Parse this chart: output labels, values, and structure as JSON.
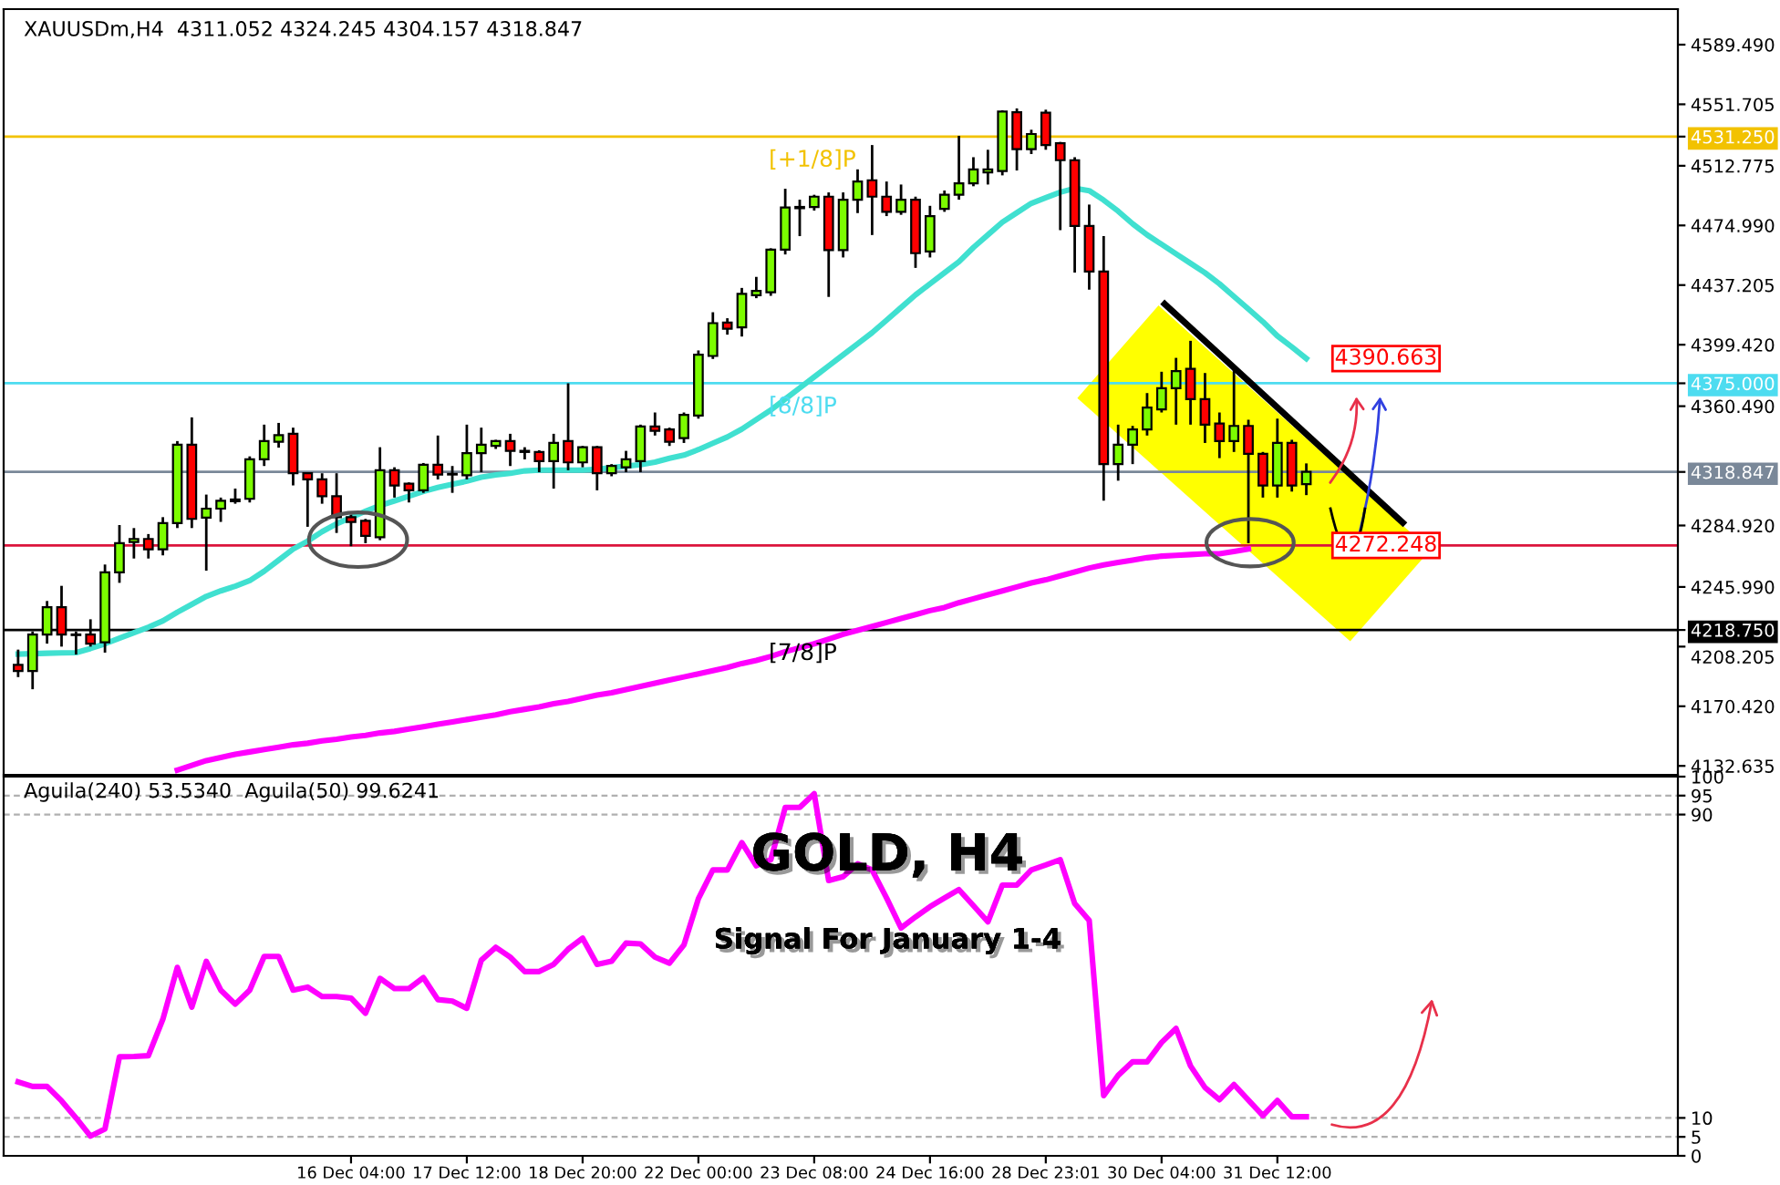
{
  "chart_data": [
    {
      "type": "candlestick",
      "title": "XAUUSDm,H4  4311.052 4324.245 4304.157 4318.847",
      "categories": [
        null,
        null,
        null,
        null,
        null,
        null,
        null,
        null,
        null,
        null,
        null,
        null,
        null,
        null,
        null,
        null,
        null,
        null,
        null,
        null,
        null,
        null,
        null,
        null,
        null,
        null,
        null,
        null,
        null,
        null,
        null,
        null,
        null,
        null,
        null,
        null,
        null,
        null,
        null,
        null,
        null,
        null,
        null,
        null,
        null,
        null,
        null,
        null,
        null,
        null,
        null,
        null,
        null,
        null,
        null,
        null,
        null,
        null,
        null,
        null,
        null,
        null,
        null,
        null,
        null,
        null,
        null,
        null,
        null,
        null,
        null,
        null,
        null,
        null,
        null,
        null,
        null,
        null,
        null,
        null,
        null,
        null,
        null,
        null,
        null,
        null,
        null,
        null,
        null,
        null
      ],
      "ohlc": [
        [
          4196.7,
          4206.3,
          4188.9,
          4192.8
        ],
        [
          4192.8,
          4217.8,
          4181.2,
          4215.9
        ],
        [
          4215.9,
          4237.1,
          4210.1,
          4233.2
        ],
        [
          4233.2,
          4246.7,
          4208.2,
          4215.9
        ],
        [
          4215.9,
          4217.8,
          4203.2,
          4215.5
        ],
        [
          4215.9,
          4225.5,
          4208.2,
          4210.1
        ],
        [
          4210.9,
          4260.2,
          4204.4,
          4255.2
        ],
        [
          4255.2,
          4285.2,
          4248.6,
          4273.7
        ],
        [
          4274.4,
          4283.3,
          4264.0,
          4276.4
        ],
        [
          4276.4,
          4279.5,
          4264.0,
          4269.8
        ],
        [
          4269.8,
          4290.2,
          4266.0,
          4286.4
        ],
        [
          4286.4,
          4338.4,
          4283.3,
          4336.1
        ],
        [
          4336.1,
          4353.4,
          4283.3,
          4289.1
        ],
        [
          4289.9,
          4304.5,
          4256.3,
          4295.6
        ],
        [
          4295.6,
          4302.6,
          4287.2,
          4300.6
        ],
        [
          4300.3,
          4308.3,
          4298.7,
          4301.4
        ],
        [
          4301.8,
          4328.7,
          4299.5,
          4326.8
        ],
        [
          4326.8,
          4348.8,
          4322.6,
          4338.4
        ],
        [
          4338.0,
          4349.9,
          4334.2,
          4342.2
        ],
        [
          4343.0,
          4346.9,
          4310.3,
          4318.0
        ],
        [
          4318.0,
          4318.7,
          4284.1,
          4314.1
        ],
        [
          4314.1,
          4318.0,
          4298.7,
          4303.4
        ],
        [
          4303.4,
          4318.0,
          4280.2,
          4290.2
        ],
        [
          4290.2,
          4291.8,
          4271.8,
          4287.2
        ],
        [
          4287.9,
          4289.1,
          4273.7,
          4278.3
        ],
        [
          4277.5,
          4334.5,
          4275.6,
          4319.9
        ],
        [
          4319.9,
          4321.8,
          4302.6,
          4310.3
        ],
        [
          4311.4,
          4312.2,
          4299.5,
          4307.2
        ],
        [
          4307.2,
          4324.5,
          4305.6,
          4323.4
        ],
        [
          4323.4,
          4341.9,
          4314.1,
          4317.2
        ],
        [
          4317.6,
          4322.6,
          4305.6,
          4317.2
        ],
        [
          4316.8,
          4348.8,
          4314.1,
          4330.7
        ],
        [
          4330.7,
          4346.9,
          4318.7,
          4336.1
        ],
        [
          4335.3,
          4339.2,
          4333.4,
          4338.4
        ],
        [
          4338.4,
          4343.0,
          4322.6,
          4332.2
        ],
        [
          4332.2,
          4334.5,
          4326.8,
          4331.5
        ],
        [
          4331.5,
          4332.6,
          4318.7,
          4325.7
        ],
        [
          4325.7,
          4343.0,
          4308.3,
          4337.2
        ],
        [
          4338.4,
          4375.0,
          4319.9,
          4324.9
        ],
        [
          4324.9,
          4335.3,
          4321.8,
          4334.5
        ],
        [
          4334.5,
          4335.3,
          4307.2,
          4318.0
        ],
        [
          4318.0,
          4323.8,
          4316.1,
          4322.6
        ],
        [
          4321.8,
          4332.2,
          4318.7,
          4326.8
        ],
        [
          4325.7,
          4348.8,
          4318.7,
          4347.6
        ],
        [
          4347.6,
          4356.5,
          4341.9,
          4344.9
        ],
        [
          4345.7,
          4346.9,
          4335.3,
          4338.0
        ],
        [
          4340.3,
          4356.5,
          4337.2,
          4355.0
        ],
        [
          4354.6,
          4395.8,
          4352.6,
          4393.1
        ],
        [
          4392.3,
          4420.0,
          4390.4,
          4413.1
        ],
        [
          4413.5,
          4416.2,
          4405.8,
          4409.6
        ],
        [
          4410.4,
          4435.4,
          4404.6,
          4431.6
        ],
        [
          4430.8,
          4442.4,
          4428.9,
          4433.5
        ],
        [
          4432.7,
          4460.5,
          4430.4,
          4459.7
        ],
        [
          4459.7,
          4498.2,
          4456.6,
          4486.3
        ],
        [
          4486.7,
          4491.3,
          4468.2,
          4485.9
        ],
        [
          4486.7,
          4494.4,
          4484.4,
          4493.2
        ],
        [
          4493.2,
          4495.9,
          4429.7,
          4459.3
        ],
        [
          4459.3,
          4495.9,
          4454.7,
          4491.3
        ],
        [
          4491.3,
          4510.5,
          4482.8,
          4502.8
        ],
        [
          4503.6,
          4525.9,
          4468.9,
          4493.2
        ],
        [
          4493.2,
          4502.8,
          4480.9,
          4483.6
        ],
        [
          4483.6,
          4500.9,
          4481.7,
          4491.3
        ],
        [
          4491.3,
          4493.2,
          4448.1,
          4457.4
        ],
        [
          4458.5,
          4487.4,
          4454.7,
          4480.9
        ],
        [
          4485.5,
          4497.1,
          4483.6,
          4494.4
        ],
        [
          4494.4,
          4531.7,
          4491.3,
          4501.7
        ],
        [
          4501.7,
          4518.2,
          4499.8,
          4510.5
        ],
        [
          4508.6,
          4522.9,
          4500.9,
          4510.5
        ],
        [
          4509.4,
          4547.9,
          4506.7,
          4547.1
        ],
        [
          4546.7,
          4549.1,
          4509.8,
          4523.3
        ],
        [
          4523.3,
          4535.6,
          4520.2,
          4532.9
        ],
        [
          4546.4,
          4548.3,
          4522.9,
          4525.9
        ],
        [
          4527.1,
          4527.9,
          4472.0,
          4516.3
        ],
        [
          4516.3,
          4518.2,
          4445.1,
          4474.7
        ],
        [
          4474.7,
          4488.2,
          4434.3,
          4445.8
        ],
        [
          4445.8,
          4468.2,
          4300.6,
          4323.8
        ],
        [
          4323.8,
          4348.8,
          4313.3,
          4336.1
        ],
        [
          4336.1,
          4348.0,
          4323.8,
          4345.7
        ],
        [
          4345.7,
          4368.8,
          4341.9,
          4359.6
        ],
        [
          4358.4,
          4382.3,
          4356.5,
          4371.9
        ],
        [
          4371.9,
          4391.1,
          4348.8,
          4382.7
        ],
        [
          4384.2,
          4401.9,
          4348.8,
          4364.9
        ],
        [
          4364.9,
          4381.5,
          4337.2,
          4348.8
        ],
        [
          4349.5,
          4356.5,
          4327.6,
          4338.4
        ],
        [
          4338.4,
          4385.4,
          4331.5,
          4348.0
        ],
        [
          4348.0,
          4351.9,
          4273.7,
          4330.3
        ],
        [
          4330.3,
          4331.5,
          4302.6,
          4310.3
        ],
        [
          4310.3,
          4352.6,
          4302.6,
          4337.2
        ],
        [
          4337.2,
          4339.2,
          4306.4,
          4310.3
        ],
        [
          4311.052,
          4324.245,
          4304.157,
          4318.847
        ]
      ],
      "colors": [
        "#ff0000",
        "#7cfc00",
        "#7cfc00",
        "#ff0000",
        "#ff0000",
        "#ff0000",
        "#7cfc00",
        "#7cfc00",
        "#7cfc00",
        "#ff0000",
        "#7cfc00",
        "#7cfc00",
        "#ff0000",
        "#7cfc00",
        "#7cfc00",
        "#7cfc00",
        "#7cfc00",
        "#7cfc00",
        "#7cfc00",
        "#ff0000",
        "#ff0000",
        "#ff0000",
        "#ff0000",
        "#ff0000",
        "#ff0000",
        "#7cfc00",
        "#ff0000",
        "#ff0000",
        "#7cfc00",
        "#ff0000",
        "#ff0000",
        "#7cfc00",
        "#7cfc00",
        "#7cfc00",
        "#ff0000",
        "#ff0000",
        "#ff0000",
        "#7cfc00",
        "#ff0000",
        "#7cfc00",
        "#ff0000",
        "#7cfc00",
        "#7cfc00",
        "#7cfc00",
        "#ff0000",
        "#ff0000",
        "#7cfc00",
        "#7cfc00",
        "#7cfc00",
        "#ff0000",
        "#7cfc00",
        "#7cfc00",
        "#7cfc00",
        "#7cfc00",
        "#ff0000",
        "#7cfc00",
        "#ff0000",
        "#7cfc00",
        "#7cfc00",
        "#ff0000",
        "#ff0000",
        "#7cfc00",
        "#ff0000",
        "#7cfc00",
        "#7cfc00",
        "#7cfc00",
        "#7cfc00",
        "#7cfc00",
        "#7cfc00",
        "#ff0000",
        "#7cfc00",
        "#ff0000",
        "#ff0000",
        "#ff0000",
        "#ff0000",
        "#ff0000",
        "#7cfc00",
        "#7cfc00",
        "#7cfc00",
        "#7cfc00",
        "#7cfc00",
        "#ff0000",
        "#ff0000",
        "#ff0000",
        "#7cfc00",
        "#ff0000",
        "#ff0000",
        "#7cfc00",
        "#ff0000",
        "#7cfc00"
      ],
      "series": [
        {
          "type": "line",
          "color": "#40e0d0",
          "values": [
            4203.5,
            4203.7,
            4204,
            4204.2,
            4204.4,
            4207,
            4210,
            4213.5,
            4217,
            4220.5,
            4224.5,
            4230,
            4235,
            4240,
            4243.5,
            4246.5,
            4250,
            4256,
            4263,
            4270,
            4275,
            4281,
            4286,
            4290,
            4294,
            4297.5,
            4300.5,
            4303.5,
            4306.5,
            4309,
            4311,
            4313,
            4315.5,
            4317,
            4318,
            4319.5,
            4320,
            4320,
            4320,
            4320,
            4320.5,
            4321.5,
            4322.5,
            4323.5,
            4325,
            4327.5,
            4329.5,
            4333,
            4337,
            4341,
            4346,
            4352,
            4358,
            4365,
            4372,
            4379,
            4386,
            4393,
            4400,
            4407,
            4415,
            4423,
            4431,
            4438,
            4445,
            4452,
            4461,
            4469,
            4477,
            4483,
            4489,
            4492.5,
            4496,
            4498.5,
            4497,
            4491,
            4484,
            4476,
            4469,
            4463,
            4457,
            4451,
            4445,
            4438,
            4430,
            4422,
            4414,
            4405,
            4398,
            4390.663
          ]
        },
        {
          "type": "line",
          "color": "#ff00ff",
          "values": [
            null,
            null,
            null,
            null,
            null,
            null,
            null,
            null,
            null,
            null,
            null,
            4130,
            4133,
            4136,
            4138,
            4140,
            4141.5,
            4143,
            4144.5,
            4146,
            4147,
            4148.5,
            4149.5,
            4151,
            4152,
            4153.5,
            4154.5,
            4156,
            4157.5,
            4159,
            4160.5,
            4162,
            4163.5,
            4165,
            4167,
            4168.5,
            4170,
            4172,
            4173.5,
            4175.5,
            4177.5,
            4179,
            4181,
            4183,
            4185,
            4187,
            4189,
            4191,
            4193,
            4195,
            4197.5,
            4199.5,
            4202,
            4205,
            4207.5,
            4210,
            4213,
            4216,
            4218.5,
            4221,
            4223.5,
            4226,
            4228.5,
            4231,
            4233,
            4236,
            4238.5,
            4241,
            4243.5,
            4246,
            4248.5,
            4250.5,
            4253,
            4255.5,
            4258,
            4260,
            4261.5,
            4263,
            4264.5,
            4265.5,
            4266,
            4266.5,
            4267,
            4267,
            4268.5,
            4270,
            null,
            null,
            null,
            null
          ]
        }
      ],
      "ref_lines": [
        {
          "axis": "y",
          "value": 4531.25,
          "label": "[+1/8]P",
          "color": "#f2c200",
          "line_style": "solid"
        },
        {
          "axis": "y",
          "value": 4375.0,
          "label": "[8/8]P",
          "color": "#4ddcf0",
          "line_style": "solid"
        },
        {
          "axis": "y",
          "value": 4318.847,
          "color": "#7a8899",
          "line_style": "solid"
        },
        {
          "axis": "y",
          "value": 4218.75,
          "label": "[7/8]P",
          "color": "#000000",
          "line_style": "solid"
        },
        {
          "axis": "y",
          "value": 4272.248,
          "color": "#dc143c",
          "line_style": "solid"
        }
      ],
      "annotations": [
        "4390.663",
        {
          "text": "4272.248",
          "y": 4272.248
        }
      ],
      "ylim": [
        4127,
        4612
      ],
      "yticks": [
        {
          "value": 4589.49,
          "label": "4589.490"
        },
        4551.705,
        {
          "value": 4531.25,
          "label": "4531.250"
        },
        4512.775,
        {
          "value": 4474.99,
          "label": "4474.990"
        },
        4437.205,
        {
          "value": 4399.42,
          "label": "4399.420"
        },
        {
          "value": 4375,
          "label": "4375.000"
        },
        {
          "value": 4360.49,
          "label": "4360.490"
        },
        4318.847,
        {
          "value": 4284.92,
          "label": "4284.920"
        },
        {
          "value": 4245.99,
          "label": "4245.990"
        },
        {
          "value": 4218.75,
          "label": "4218.750"
        },
        4208.205,
        {
          "value": 4170.42,
          "label": "4170.420"
        },
        4132.635
      ],
      "tick_labels": "y",
      "grid": false
    },
    {
      "type": "line",
      "title": "Aguila(240) 53.5340  Aguila(50) 99.6241",
      "categories": [
        null,
        null,
        null,
        null,
        null,
        null,
        null,
        null,
        null,
        null,
        null,
        null,
        null,
        null,
        null,
        null,
        null,
        null,
        null,
        null,
        null,
        null,
        null,
        "16 Dec 04:00",
        null,
        null,
        null,
        null,
        null,
        null,
        null,
        "17 Dec 12:00",
        null,
        null,
        null,
        null,
        null,
        null,
        null,
        "18 Dec 20:00",
        null,
        null,
        null,
        null,
        null,
        null,
        null,
        "22 Dec 00:00",
        null,
        null,
        null,
        null,
        null,
        null,
        null,
        "23 Dec 08:00",
        null,
        null,
        null,
        null,
        null,
        null,
        null,
        "24 Dec 16:00",
        null,
        null,
        null,
        null,
        null,
        null,
        null,
        "28 Dec 23:01",
        null,
        null,
        null,
        null,
        null,
        null,
        null,
        "30 Dec 04:00",
        null,
        null,
        null,
        null,
        null,
        null,
        null,
        "31 Dec 12:00",
        null,
        null
      ],
      "series": [
        {
          "color": "#ff00ff",
          "values": [
            19.5,
            18.3,
            18.3,
            14.5,
            10,
            5.2,
            7.1,
            26.1,
            26.2,
            26.4,
            36.0,
            49.7,
            39.2,
            51.3,
            43.7,
            40.0,
            43.7,
            52.6,
            52.6,
            43.7,
            44.5,
            42.0,
            42.0,
            41.6,
            37.6,
            46.8,
            44.1,
            44.1,
            47.0,
            41.2,
            40.8,
            38.9,
            51.6,
            55.0,
            52.4,
            48.6,
            48.6,
            50.5,
            54.5,
            57.4,
            50.5,
            51.3,
            56.1,
            55.9,
            52.4,
            50.8,
            55.6,
            67.8,
            75.4,
            75.4,
            82.6,
            76.5,
            78.1,
            91.9,
            91.9,
            95.5,
            72.6,
            73.6,
            77.0,
            75.4,
            68,
            60.1,
            63,
            65.7,
            68,
            70.2,
            66,
            61.7,
            71.4,
            71.4,
            75.4,
            76.7,
            78.1,
            66.5,
            62.1,
            15.9,
            21.2,
            24.8,
            24.8,
            29.9,
            33.6,
            23.7,
            18.0,
            14.8,
            18.8,
            14.7,
            10.6,
            14.6,
            10.3,
            10.3
          ]
        }
      ],
      "annotations": [
        "GOLD, H4",
        "Signal For January 1-4"
      ],
      "ylim": [
        0,
        100
      ],
      "yticks": [
        0,
        5,
        10,
        90,
        95,
        100
      ],
      "grid": "y",
      "marker": "none",
      "line_style": "solid"
    }
  ]
}
